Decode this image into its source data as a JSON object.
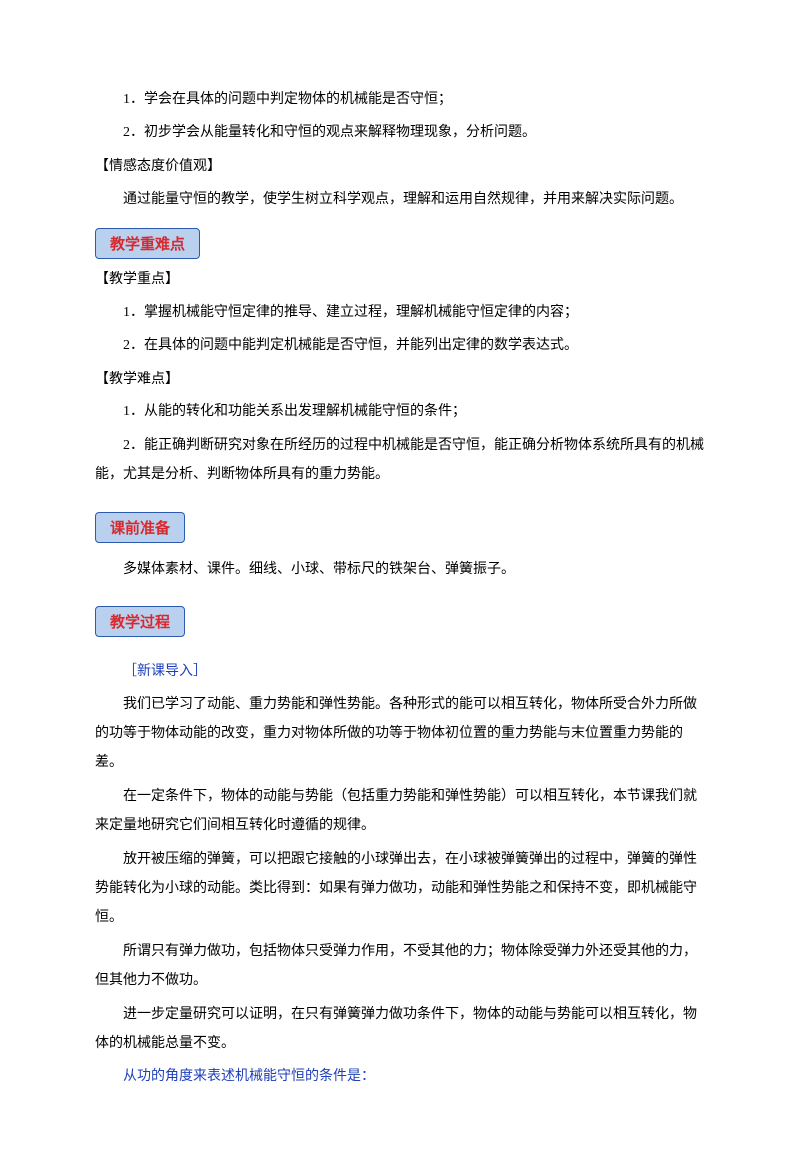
{
  "intro_items": [
    "1．学会在具体的问题中判定物体的机械能是否守恒；",
    "2．初步学会从能量转化和守恒的观点来解释物理现象，分析问题。"
  ],
  "value_heading": "【情感态度价值观】",
  "value_para": "通过能量守恒的教学，使学生树立科学观点，理解和运用自然规律，并用来解决实际问题。",
  "tag_focus": "教学重难点",
  "focus_key_heading": "【教学重点】",
  "focus_key_items": [
    "1．掌握机械能守恒定律的推导、建立过程，理解机械能守恒定律的内容；",
    "2．在具体的问题中能判定机械能是否守恒，并能列出定律的数学表达式。"
  ],
  "focus_hard_heading": "【教学难点】",
  "focus_hard_items": [
    "1．从能的转化和功能关系出发理解机械能守恒的条件；",
    "2．能正确判断研究对象在所经历的过程中机械能是否守恒，能正确分析物体系统所具有的机械能，尤其是分析、判断物体所具有的重力势能。"
  ],
  "tag_prep": "课前准备",
  "prep_para": "多媒体素材、课件。细线、小球、带标尺的铁架台、弹簧振子。",
  "tag_process": "教学过程",
  "intro_label": "［新课导入］",
  "process_paras": [
    "我们已学习了动能、重力势能和弹性势能。各种形式的能可以相互转化，物体所受合外力所做的功等于物体动能的改变，重力对物体所做的功等于物体初位置的重力势能与末位置重力势能的差。",
    "在一定条件下，物体的动能与势能（包括重力势能和弹性势能）可以相互转化，本节课我们就来定量地研究它们间相互转化时遵循的规律。",
    "放开被压缩的弹簧，可以把跟它接触的小球弹出去，在小球被弹簧弹出的过程中，弹簧的弹性势能转化为小球的动能。类比得到：如果有弹力做功，动能和弹性势能之和保持不变，即机械能守恒。",
    "所谓只有弹力做功，包括物体只受弹力作用，不受其他的力；物体除受弹力外还受其他的力，但其他力不做功。",
    "进一步定量研究可以证明，在只有弹簧弹力做功条件下，物体的动能与势能可以相互转化，物体的机械能总量不变。"
  ],
  "blue_line": "从功的角度来表述机械能守恒的条件是："
}
